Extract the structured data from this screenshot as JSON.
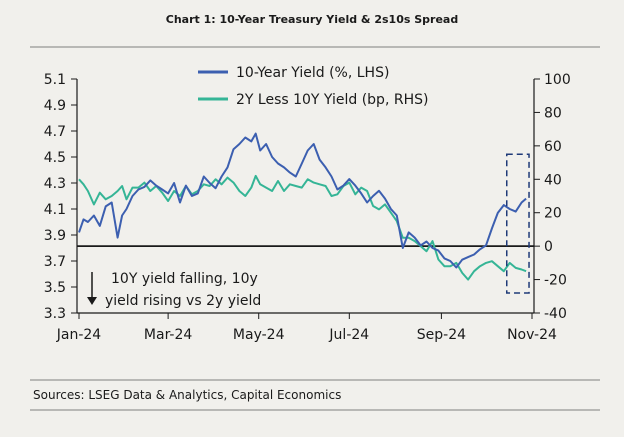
{
  "chart_data": {
    "type": "line",
    "title": "Chart 1: 10-Year Treasury Yield & 2s10s Spread",
    "x_tick_labels": [
      "Jan-24",
      "Mar-24",
      "May-24",
      "Jul-24",
      "Sep-24",
      "Nov-24"
    ],
    "x_ticks_day": [
      0,
      60,
      121,
      182,
      244,
      305
    ],
    "y_left": {
      "label": "%",
      "ylim": [
        3.3,
        5.1
      ],
      "ticks": [
        3.3,
        3.5,
        3.7,
        3.9,
        4.1,
        4.3,
        4.5,
        4.7,
        4.9,
        5.1
      ],
      "tick_labels": [
        "3.3",
        "3.5",
        "3.7",
        "3.9",
        "4.1",
        "4.3",
        "4.5",
        "4.7",
        "4.9",
        "5.1"
      ]
    },
    "y_right": {
      "label": "bp",
      "ylim": [
        -40,
        100
      ],
      "ticks": [
        -40,
        -20,
        0,
        20,
        40,
        60,
        80,
        100
      ],
      "tick_labels": [
        "-40",
        "-20",
        "0",
        "20",
        "40",
        "60",
        "80",
        "100"
      ]
    },
    "legend": {
      "position": "top-center",
      "entries": [
        "10-Year Yield (%, LHS)",
        "2Y Less 10Y Yield (bp, RHS)"
      ]
    },
    "series": [
      {
        "name": "10-Year Yield (%, LHS)",
        "axis": "left",
        "color": "#3c5fb0",
        "x_day": [
          0,
          3,
          6,
          10,
          14,
          18,
          22,
          26,
          29,
          32,
          36,
          40,
          44,
          48,
          52,
          56,
          60,
          64,
          68,
          72,
          76,
          80,
          84,
          88,
          92,
          96,
          100,
          104,
          108,
          112,
          116,
          119,
          122,
          126,
          130,
          134,
          138,
          142,
          146,
          150,
          154,
          158,
          162,
          166,
          170,
          174,
          178,
          182,
          186,
          190,
          194,
          198,
          202,
          206,
          210,
          214,
          218,
          222,
          226,
          230,
          234,
          238,
          242,
          246,
          250,
          254,
          258,
          262,
          266,
          270,
          274,
          278,
          282,
          286,
          290,
          294,
          298,
          301
        ],
        "values": [
          3.92,
          4.02,
          4.0,
          4.05,
          3.97,
          4.12,
          4.15,
          3.88,
          4.05,
          4.1,
          4.2,
          4.25,
          4.27,
          4.32,
          4.28,
          4.25,
          4.22,
          4.3,
          4.15,
          4.28,
          4.2,
          4.22,
          4.35,
          4.3,
          4.26,
          4.35,
          4.42,
          4.56,
          4.6,
          4.65,
          4.62,
          4.68,
          4.55,
          4.6,
          4.5,
          4.45,
          4.42,
          4.38,
          4.35,
          4.45,
          4.55,
          4.6,
          4.48,
          4.42,
          4.35,
          4.25,
          4.28,
          4.33,
          4.28,
          4.22,
          4.15,
          4.2,
          4.24,
          4.18,
          4.1,
          4.05,
          3.8,
          3.92,
          3.88,
          3.82,
          3.85,
          3.8,
          3.78,
          3.72,
          3.7,
          3.65,
          3.71,
          3.73,
          3.75,
          3.79,
          3.82,
          3.95,
          4.07,
          4.13,
          4.1,
          4.08,
          4.15,
          4.18
        ]
      },
      {
        "name": "2Y Less 10Y Yield (bp, RHS)",
        "axis": "right",
        "color": "#35b596",
        "x_day": [
          0,
          3,
          6,
          10,
          14,
          18,
          22,
          26,
          29,
          32,
          36,
          40,
          44,
          48,
          52,
          56,
          60,
          64,
          68,
          72,
          76,
          80,
          84,
          88,
          92,
          96,
          100,
          104,
          108,
          112,
          116,
          119,
          122,
          126,
          130,
          134,
          138,
          142,
          146,
          150,
          154,
          158,
          162,
          166,
          170,
          174,
          178,
          182,
          186,
          190,
          194,
          198,
          202,
          206,
          210,
          214,
          218,
          222,
          226,
          230,
          234,
          238,
          242,
          246,
          250,
          254,
          258,
          262,
          266,
          270,
          274,
          278,
          282,
          286,
          290,
          294,
          298,
          301
        ],
        "values": [
          40,
          37,
          33,
          25,
          32,
          28,
          30,
          33,
          36,
          28,
          35,
          35,
          38,
          33,
          36,
          32,
          27,
          33,
          30,
          36,
          31,
          33,
          37,
          36,
          40,
          37,
          41,
          38,
          33,
          30,
          35,
          42,
          37,
          35,
          33,
          39,
          33,
          37,
          36,
          35,
          40,
          38,
          37,
          36,
          30,
          31,
          36,
          38,
          31,
          35,
          33,
          24,
          22,
          25,
          20,
          15,
          5,
          5,
          3,
          0,
          -3,
          3,
          -8,
          -12,
          -12,
          -10,
          -16,
          -20,
          -15,
          -12,
          -10,
          -9,
          -12,
          -15,
          -10,
          -13,
          -14,
          -15
        ]
      }
    ],
    "zero_line_axis": "right",
    "annotations": [
      {
        "text_lines": [
          "10Y yield falling, 10y",
          "yield rising vs 2y yield"
        ],
        "arrow": "down"
      },
      {
        "type": "dashed-box",
        "x_day_range": [
          288,
          303
        ],
        "y_right_range": [
          -28,
          55
        ]
      }
    ],
    "source": "Sources: LSEG Data & Analytics, Capital Economics"
  }
}
